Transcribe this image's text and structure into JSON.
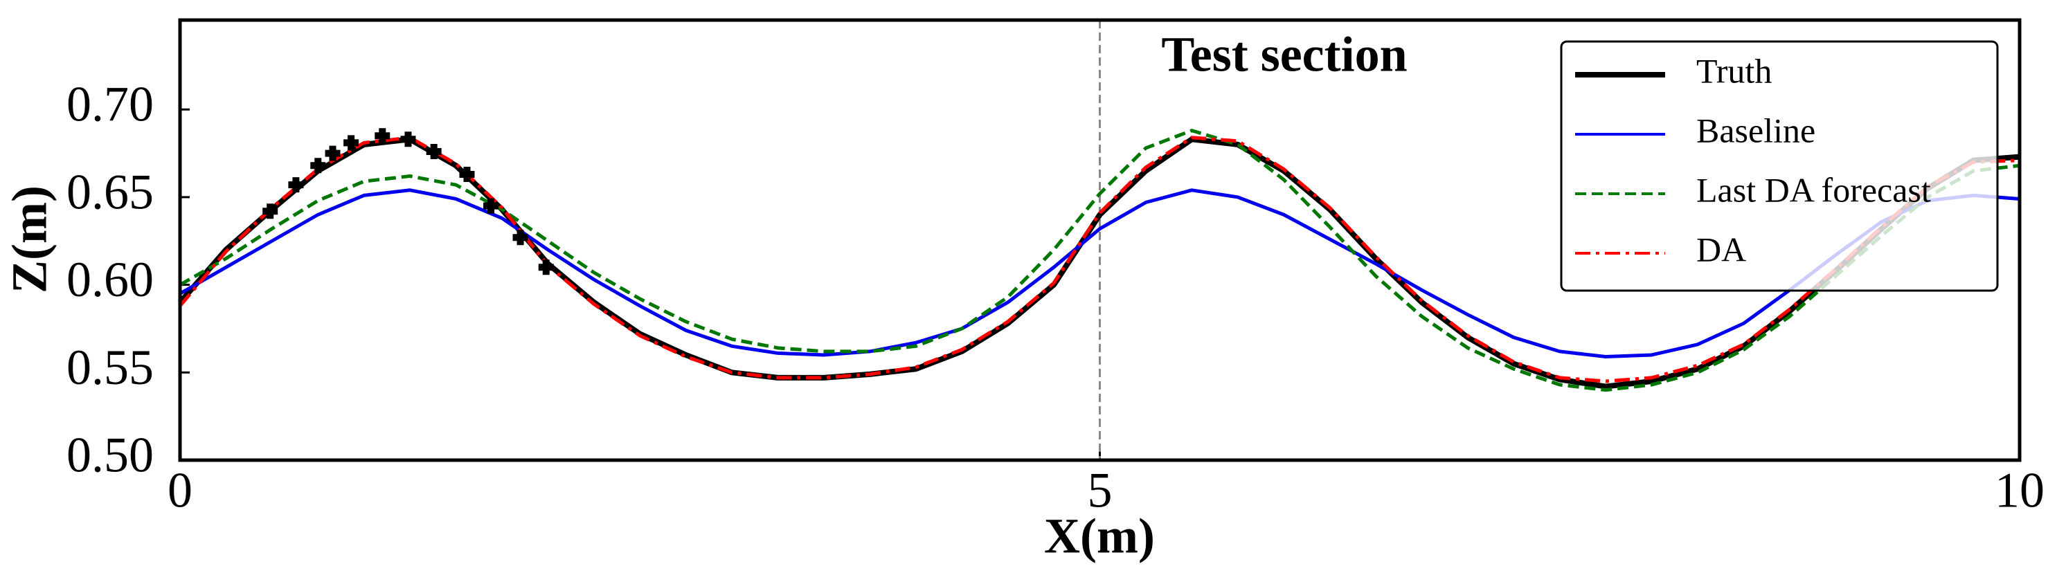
{
  "chart_data": {
    "type": "line",
    "title": "Test section",
    "xlabel": "X(m)",
    "ylabel": "Z(m)",
    "xlim": [
      0,
      10
    ],
    "ylim": [
      0.5,
      0.751
    ],
    "xticks": [
      0,
      5,
      10
    ],
    "yticks": [
      {
        "value": 0.5,
        "label": "0.50"
      },
      {
        "value": 0.55,
        "label": "0.55"
      },
      {
        "value": 0.6,
        "label": "0.60"
      },
      {
        "value": 0.65,
        "label": "0.65"
      },
      {
        "value": 0.7,
        "label": "0.70"
      }
    ],
    "grid": false,
    "legend": "upper right",
    "vline": 5,
    "x": [
      0,
      0.25,
      0.5,
      0.75,
      1,
      1.25,
      1.5,
      1.75,
      2,
      2.25,
      2.5,
      2.75,
      3,
      3.25,
      3.5,
      3.75,
      4,
      4.25,
      4.5,
      4.75,
      5,
      5.25,
      5.5,
      5.75,
      6,
      6.25,
      6.5,
      6.75,
      7,
      7.25,
      7.5,
      7.75,
      8,
      8.25,
      8.5,
      8.75,
      9,
      9.25,
      9.5,
      9.75,
      10
    ],
    "series": [
      {
        "name": "Truth",
        "color": "#000000",
        "linestyle": "solid",
        "values": [
          0.59,
          0.62,
          0.643,
          0.665,
          0.68,
          0.683,
          0.668,
          0.643,
          0.612,
          0.59,
          0.572,
          0.56,
          0.55,
          0.547,
          0.547,
          0.549,
          0.552,
          0.562,
          0.578,
          0.6,
          0.64,
          0.665,
          0.683,
          0.68,
          0.665,
          0.643,
          0.615,
          0.59,
          0.57,
          0.555,
          0.546,
          0.542,
          0.545,
          0.552,
          0.565,
          0.585,
          0.608,
          0.632,
          0.655,
          0.671,
          0.673
        ]
      },
      {
        "name": "Baseline",
        "color": "#0000ee",
        "linestyle": "solid",
        "values": [
          0.595,
          0.61,
          0.625,
          0.64,
          0.651,
          0.654,
          0.649,
          0.638,
          0.62,
          0.603,
          0.588,
          0.574,
          0.565,
          0.561,
          0.56,
          0.562,
          0.567,
          0.575,
          0.59,
          0.61,
          0.632,
          0.647,
          0.654,
          0.65,
          0.64,
          0.626,
          0.612,
          0.597,
          0.583,
          0.57,
          0.562,
          0.559,
          0.56,
          0.566,
          0.578,
          0.597,
          0.617,
          0.636,
          0.648,
          0.651,
          0.649
        ]
      },
      {
        "name": "Last DA forecast",
        "color": "#007700",
        "linestyle": "dashed",
        "values": [
          0.6,
          0.615,
          0.632,
          0.648,
          0.659,
          0.662,
          0.657,
          0.643,
          0.625,
          0.607,
          0.592,
          0.579,
          0.569,
          0.564,
          0.562,
          0.562,
          0.565,
          0.575,
          0.593,
          0.62,
          0.652,
          0.678,
          0.688,
          0.68,
          0.66,
          0.633,
          0.605,
          0.582,
          0.564,
          0.552,
          0.543,
          0.54,
          0.543,
          0.55,
          0.563,
          0.582,
          0.605,
          0.628,
          0.65,
          0.665,
          0.668
        ]
      },
      {
        "name": "DA",
        "color": "#ff0000",
        "linestyle": "dashdot",
        "values": [
          0.588,
          0.619,
          0.644,
          0.666,
          0.681,
          0.684,
          0.669,
          0.644,
          0.611,
          0.589,
          0.571,
          0.559,
          0.55,
          0.547,
          0.547,
          0.549,
          0.553,
          0.563,
          0.579,
          0.601,
          0.641,
          0.667,
          0.684,
          0.682,
          0.666,
          0.644,
          0.616,
          0.591,
          0.571,
          0.556,
          0.547,
          0.545,
          0.547,
          0.554,
          0.566,
          0.586,
          0.609,
          0.633,
          0.656,
          0.67,
          0.671
        ]
      }
    ],
    "markers": {
      "color": "#000000",
      "x": [
        0.49,
        0.63,
        0.75,
        0.83,
        0.93,
        1.1,
        1.24,
        1.38,
        1.56,
        1.69,
        1.85,
        1.99
      ],
      "values": [
        0.642,
        0.657,
        0.668,
        0.675,
        0.681,
        0.685,
        0.683,
        0.676,
        0.663,
        0.645,
        0.627,
        0.61
      ]
    }
  }
}
